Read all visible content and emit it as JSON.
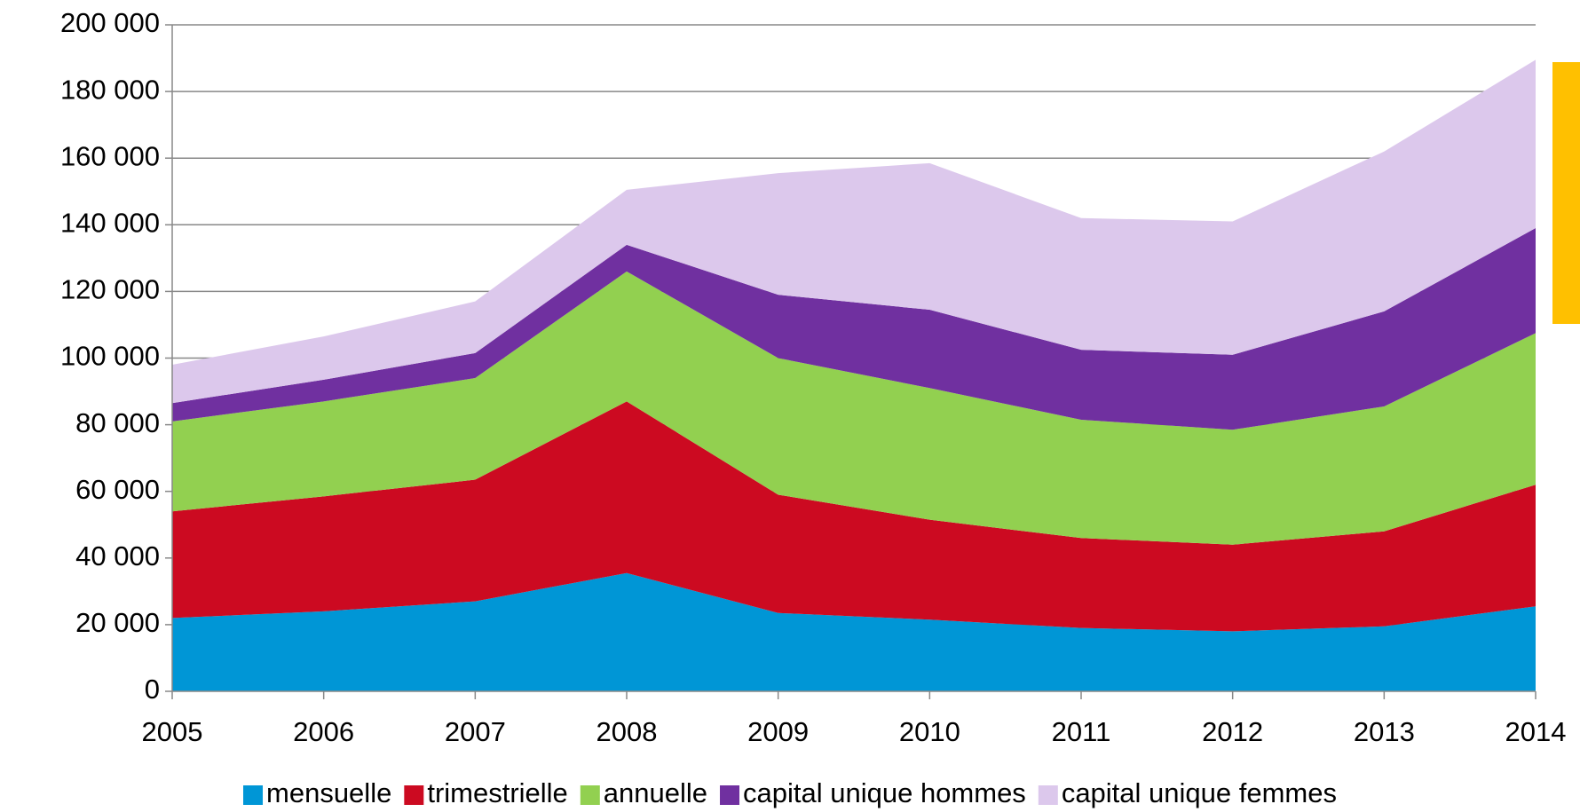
{
  "chart_data": {
    "type": "stacked_area",
    "categories": [
      "2005",
      "2006",
      "2007",
      "2008",
      "2009",
      "2010",
      "2011",
      "2012",
      "2013",
      "2014"
    ],
    "series": [
      {
        "name": "mensuelle",
        "color": "#0096d6",
        "values": [
          22000,
          24000,
          27000,
          35500,
          23500,
          21500,
          19000,
          18000,
          19500,
          25500
        ]
      },
      {
        "name": "trimestrielle",
        "color": "#cc0a21",
        "values": [
          32000,
          34500,
          36500,
          51500,
          35500,
          30000,
          27000,
          26000,
          28500,
          36500
        ]
      },
      {
        "name": "annuelle",
        "color": "#92d050",
        "values": [
          27000,
          28500,
          30500,
          39000,
          41000,
          39500,
          35500,
          34500,
          37500,
          45500
        ]
      },
      {
        "name": "capital unique hommes",
        "color": "#7030a0",
        "values": [
          5500,
          6500,
          7500,
          8000,
          19000,
          23500,
          21000,
          22500,
          28500,
          31500
        ]
      },
      {
        "name": "capital unique femmes",
        "color": "#dcc8ec",
        "values": [
          11500,
          13000,
          15500,
          16500,
          36500,
          44000,
          39500,
          40000,
          48000,
          50500
        ]
      }
    ],
    "ylim": [
      0,
      200000
    ],
    "yticks": [
      0,
      {
        "value": 20000,
        "label": "20 000"
      },
      {
        "value": 40000,
        "label": "40 000"
      },
      {
        "value": 60000,
        "label": "60 000"
      },
      {
        "value": 80000,
        "label": "80 000"
      },
      {
        "value": 100000,
        "label": "100 000"
      },
      {
        "value": 120000,
        "label": "120 000"
      },
      {
        "value": 140000,
        "label": "140 000"
      },
      {
        "value": 160000,
        "label": "160 000"
      },
      {
        "value": 180000,
        "label": "180 000"
      },
      {
        "value": 200000,
        "label": "200 000"
      }
    ],
    "grid": true,
    "legend": "bottom"
  }
}
